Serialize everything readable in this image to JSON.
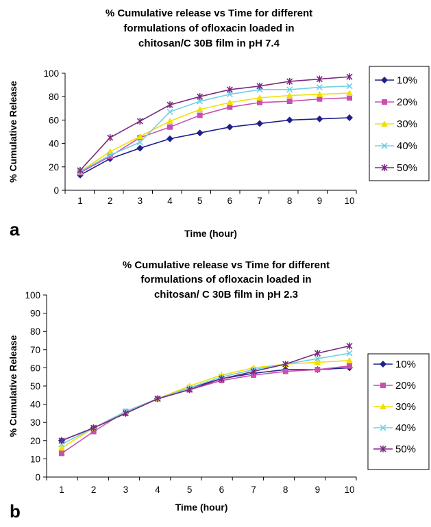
{
  "chart_data": [
    {
      "type": "line",
      "panel_label": "a",
      "title_lines": [
        "% Cumulative release vs Time for different",
        "formulations of ofloxacin loaded in",
        "chitosan/C 30B film in pH 7.4"
      ],
      "xlabel": "Time (hour)",
      "ylabel": "% Cumulative Release",
      "x": [
        1,
        2,
        3,
        4,
        5,
        6,
        7,
        8,
        9,
        10
      ],
      "ylim": [
        0,
        100
      ],
      "yticks": [
        0,
        20,
        40,
        60,
        80,
        100
      ],
      "grid": false,
      "legend_position": "right",
      "series": [
        {
          "name": "10%",
          "color": "#1f1f8c",
          "marker": "diamond",
          "values": [
            13,
            27,
            36,
            44,
            49,
            54,
            57,
            60,
            61,
            62
          ]
        },
        {
          "name": "20%",
          "color": "#c850b0",
          "marker": "square",
          "values": [
            15,
            29,
            45,
            54,
            64,
            71,
            75,
            76,
            78,
            79
          ]
        },
        {
          "name": "30%",
          "color": "#f2e000",
          "marker": "triangle",
          "values": [
            16,
            33,
            46,
            59,
            69,
            75,
            79,
            81,
            82,
            83
          ]
        },
        {
          "name": "40%",
          "color": "#6fd0e8",
          "marker": "x",
          "values": [
            16,
            30,
            41,
            67,
            76,
            82,
            86,
            86,
            88,
            89
          ]
        },
        {
          "name": "50%",
          "color": "#7a2a7e",
          "marker": "star",
          "values": [
            17,
            45,
            59,
            73,
            80,
            86,
            89,
            93,
            95,
            97
          ]
        }
      ]
    },
    {
      "type": "line",
      "panel_label": "b",
      "title_lines": [
        "% Cumulative release vs Time for different",
        "formulations of ofloxacin loaded in",
        "chitosan/ C 30B film in pH 2.3"
      ],
      "xlabel": "Time (hour)",
      "ylabel": "% Cumulative Release",
      "x": [
        1,
        2,
        3,
        4,
        5,
        6,
        7,
        8,
        9,
        10
      ],
      "ylim": [
        0,
        100
      ],
      "yticks": [
        0,
        10,
        20,
        30,
        40,
        50,
        60,
        70,
        80,
        90,
        100
      ],
      "grid": false,
      "legend_position": "right",
      "series": [
        {
          "name": "10%",
          "color": "#1f1f8c",
          "marker": "diamond",
          "values": [
            20,
            27,
            35,
            43,
            49,
            54,
            57,
            59,
            59,
            60
          ]
        },
        {
          "name": "20%",
          "color": "#c850b0",
          "marker": "square",
          "values": [
            13,
            25,
            36,
            43,
            48,
            53,
            56,
            58,
            59,
            61
          ]
        },
        {
          "name": "30%",
          "color": "#f2e000",
          "marker": "triangle",
          "values": [
            16,
            27,
            36,
            43,
            50,
            56,
            60,
            62,
            63,
            64
          ]
        },
        {
          "name": "40%",
          "color": "#6fd0e8",
          "marker": "x",
          "values": [
            18,
            27,
            36,
            43,
            49,
            55,
            59,
            62,
            65,
            68
          ]
        },
        {
          "name": "50%",
          "color": "#7a2a7e",
          "marker": "star",
          "values": [
            20,
            27,
            35,
            43,
            48,
            54,
            58,
            62,
            68,
            72
          ]
        }
      ]
    }
  ]
}
